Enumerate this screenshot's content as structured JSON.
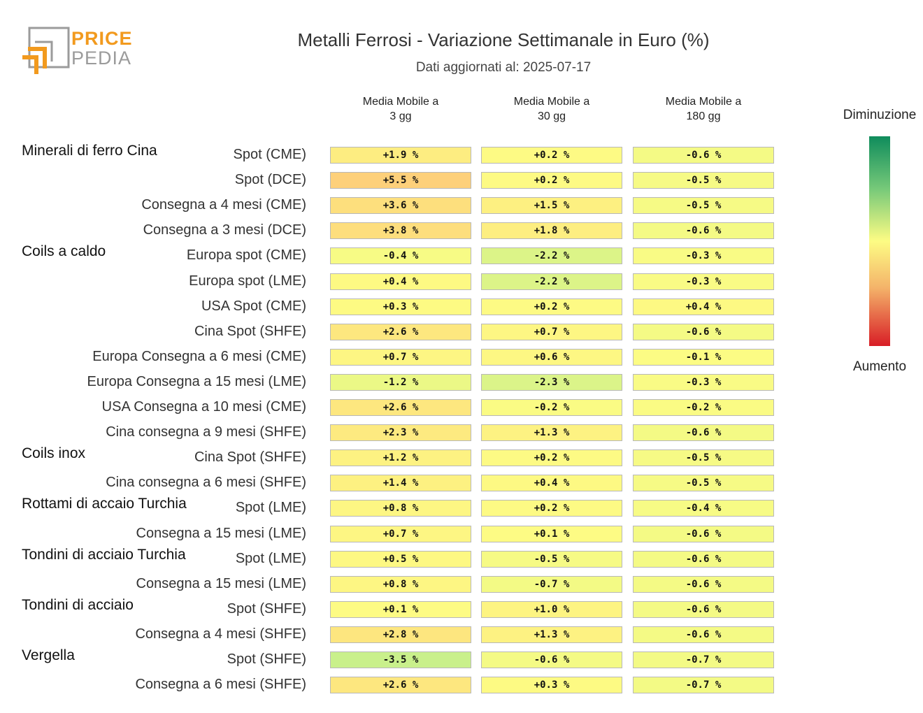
{
  "logo": {
    "line1": "PRICE",
    "line2": "PEDIA"
  },
  "title": "Metalli Ferrosi - Variazione Settimanale in Euro (%)",
  "subtitle": "Dati aggiornati al: 2025-07-17",
  "legend": {
    "top": "Diminuzione",
    "bottom": "Aumento"
  },
  "colors": {
    "decrease_strong": "#0f8c5c",
    "neutral": "#fdfc84",
    "increase_strong": "#d81d26"
  },
  "chart_data": {
    "type": "heatmap",
    "columns": [
      {
        "line1": "Media Mobile a",
        "line2": "3 gg"
      },
      {
        "line1": "Media Mobile a",
        "line2": "30 gg"
      },
      {
        "line1": "Media Mobile a",
        "line2": "180 gg"
      }
    ],
    "groups": [
      {
        "name": "Minerali di ferro Cina",
        "rows": [
          {
            "label": "Spot (CME)",
            "values": [
              1.9,
              0.2,
              -0.6
            ]
          },
          {
            "label": "Spot (DCE)",
            "values": [
              5.5,
              0.2,
              -0.5
            ]
          },
          {
            "label": "Consegna a 4 mesi (CME)",
            "values": [
              3.6,
              1.5,
              -0.5
            ]
          },
          {
            "label": "Consegna a 3 mesi (DCE)",
            "values": [
              3.8,
              1.8,
              -0.6
            ]
          }
        ]
      },
      {
        "name": "Coils a caldo",
        "rows": [
          {
            "label": "Europa spot (CME)",
            "values": [
              -0.4,
              -2.2,
              -0.3
            ]
          },
          {
            "label": "Europa spot (LME)",
            "values": [
              0.4,
              -2.2,
              -0.3
            ]
          },
          {
            "label": "USA Spot (CME)",
            "values": [
              0.3,
              0.2,
              0.4
            ]
          },
          {
            "label": "Cina Spot (SHFE)",
            "values": [
              2.6,
              0.7,
              -0.6
            ]
          },
          {
            "label": "Europa Consegna a 6 mesi (CME)",
            "values": [
              0.7,
              0.6,
              -0.1
            ]
          },
          {
            "label": "Europa Consegna a 15 mesi (LME)",
            "values": [
              -1.2,
              -2.3,
              -0.3
            ]
          },
          {
            "label": "USA Consegna a 10 mesi (CME)",
            "values": [
              2.6,
              -0.2,
              -0.2
            ]
          },
          {
            "label": "Cina consegna a 9 mesi (SHFE)",
            "values": [
              2.3,
              1.3,
              -0.6
            ]
          }
        ]
      },
      {
        "name": "Coils inox",
        "rows": [
          {
            "label": "Cina Spot (SHFE)",
            "values": [
              1.2,
              0.2,
              -0.5
            ]
          },
          {
            "label": "Cina consegna a 6 mesi (SHFE)",
            "values": [
              1.4,
              0.4,
              -0.5
            ]
          }
        ]
      },
      {
        "name": "Rottami di accaio Turchia",
        "rows": [
          {
            "label": "Spot (LME)",
            "values": [
              0.8,
              0.2,
              -0.4
            ]
          },
          {
            "label": "Consegna a 15 mesi (LME)",
            "values": [
              0.7,
              0.1,
              -0.6
            ]
          }
        ]
      },
      {
        "name": "Tondini di acciaio Turchia",
        "rows": [
          {
            "label": "Spot (LME)",
            "values": [
              0.5,
              -0.5,
              -0.6
            ]
          },
          {
            "label": "Consegna a 15 mesi (LME)",
            "values": [
              0.8,
              -0.7,
              -0.6
            ]
          }
        ]
      },
      {
        "name": "Tondini di acciaio",
        "rows": [
          {
            "label": "Spot (SHFE)",
            "values": [
              0.1,
              1.0,
              -0.6
            ]
          },
          {
            "label": "Consegna a 4 mesi (SHFE)",
            "values": [
              2.8,
              1.3,
              -0.6
            ]
          }
        ]
      },
      {
        "name": "Vergella",
        "rows": [
          {
            "label": "Spot (SHFE)",
            "values": [
              -3.5,
              -0.6,
              -0.7
            ]
          },
          {
            "label": "Consegna a 6 mesi (SHFE)",
            "values": [
              2.6,
              0.3,
              -0.7
            ]
          }
        ]
      }
    ]
  }
}
